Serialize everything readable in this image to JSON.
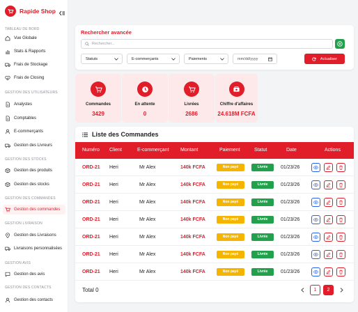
{
  "brand": {
    "name": "Rapide Shop",
    "accent": "#e11d2a"
  },
  "sidebar": {
    "sections": [
      {
        "title": "TABLEAU DE BORD",
        "items": [
          {
            "label": "Vue Globale",
            "icon": "home-icon"
          },
          {
            "label": "Stats & Rapports",
            "icon": "chart-icon"
          },
          {
            "label": "Frais de Stockage",
            "icon": "truck-icon"
          },
          {
            "label": "Frais de Closing",
            "icon": "heart-check-icon"
          }
        ]
      },
      {
        "title": "GESTION DES UTILISATEURS",
        "items": [
          {
            "label": "Analystes",
            "icon": "document-icon"
          },
          {
            "label": "Comptables",
            "icon": "document-icon"
          },
          {
            "label": "E-commerçants",
            "icon": "user-icon"
          },
          {
            "label": "Gestion des Livreurs",
            "icon": "truck-icon"
          }
        ]
      },
      {
        "title": "GESTION DES STOCKS",
        "items": [
          {
            "label": "Gestion des produits",
            "icon": "box-icon"
          },
          {
            "label": "Gestion des stocks",
            "icon": "box-icon"
          }
        ]
      },
      {
        "title": "GESTION DES COMMANDES",
        "items": [
          {
            "label": "Gestion des commandes",
            "icon": "cart-icon",
            "active": true
          }
        ]
      },
      {
        "title": "GESTION LIVRAISON",
        "items": [
          {
            "label": "Gestion des Livraisons",
            "icon": "location-icon"
          },
          {
            "label": "Livraisons personnalisées",
            "icon": "truck-icon"
          }
        ]
      },
      {
        "title": "GESTION AVIS",
        "items": [
          {
            "label": "Gestion des avis",
            "icon": "message-icon"
          }
        ]
      },
      {
        "title": "GESTION DES CONTACTS",
        "items": [
          {
            "label": "Gestion des contacts",
            "icon": "user-icon"
          }
        ]
      }
    ]
  },
  "search": {
    "title": "Rechercher avancée",
    "placeholder": "Rechercher...",
    "filters": [
      "Statuts",
      "E-commerçants",
      "Paiements"
    ],
    "date_placeholder": "mm/dd/yyyy",
    "apply_label": "Actualiser"
  },
  "stats": [
    {
      "label": "Commandes",
      "value": "3429",
      "icon": "cart-icon"
    },
    {
      "label": "En attente",
      "value": "0",
      "icon": "clock-icon"
    },
    {
      "label": "Livrées",
      "value": "2686",
      "icon": "cart-icon"
    },
    {
      "label": "Chiffre d'affaires",
      "value": "24.618M FCFA",
      "icon": "money-icon"
    }
  ],
  "orders": {
    "title": "Liste des Commandes",
    "columns": [
      "Numéro",
      "Client",
      "E-commerçant",
      "Montant",
      "Paiement",
      "Statut",
      "Date",
      "Actions"
    ],
    "rows": [
      {
        "number": "ORD-21",
        "client": "Heri",
        "merchant": "Mr Alex",
        "amount": "140k FCFA",
        "payment": "Non payé",
        "status": "Livrée",
        "date": "01/23/26"
      },
      {
        "number": "ORD-21",
        "client": "Heri",
        "merchant": "Mr Alex",
        "amount": "140k FCFA",
        "payment": "Non payé",
        "status": "Livrée",
        "date": "01/23/26"
      },
      {
        "number": "ORD-21",
        "client": "Heri",
        "merchant": "Mr Alex",
        "amount": "140k FCFA",
        "payment": "Non payé",
        "status": "Livrée",
        "date": "01/23/26"
      },
      {
        "number": "ORD-21",
        "client": "Heri",
        "merchant": "Mr Alex",
        "amount": "140k FCFA",
        "payment": "Non payé",
        "status": "Livrée",
        "date": "01/23/26"
      },
      {
        "number": "ORD-21",
        "client": "Heri",
        "merchant": "Mr Alex",
        "amount": "140k FCFA",
        "payment": "Non payé",
        "status": "Livrée",
        "date": "01/23/26"
      },
      {
        "number": "ORD-21",
        "client": "Heri",
        "merchant": "Mr Alex",
        "amount": "140k FCFA",
        "payment": "Non payé",
        "status": "Livrée",
        "date": "01/23/26"
      },
      {
        "number": "ORD-21",
        "client": "Heri",
        "merchant": "Mr Alex",
        "amount": "140k FCFA",
        "payment": "Non payé",
        "status": "Livrée",
        "date": "01/23/26"
      }
    ],
    "total_label": "Total 0",
    "pages": [
      "1",
      "2"
    ],
    "current_page": "2"
  }
}
